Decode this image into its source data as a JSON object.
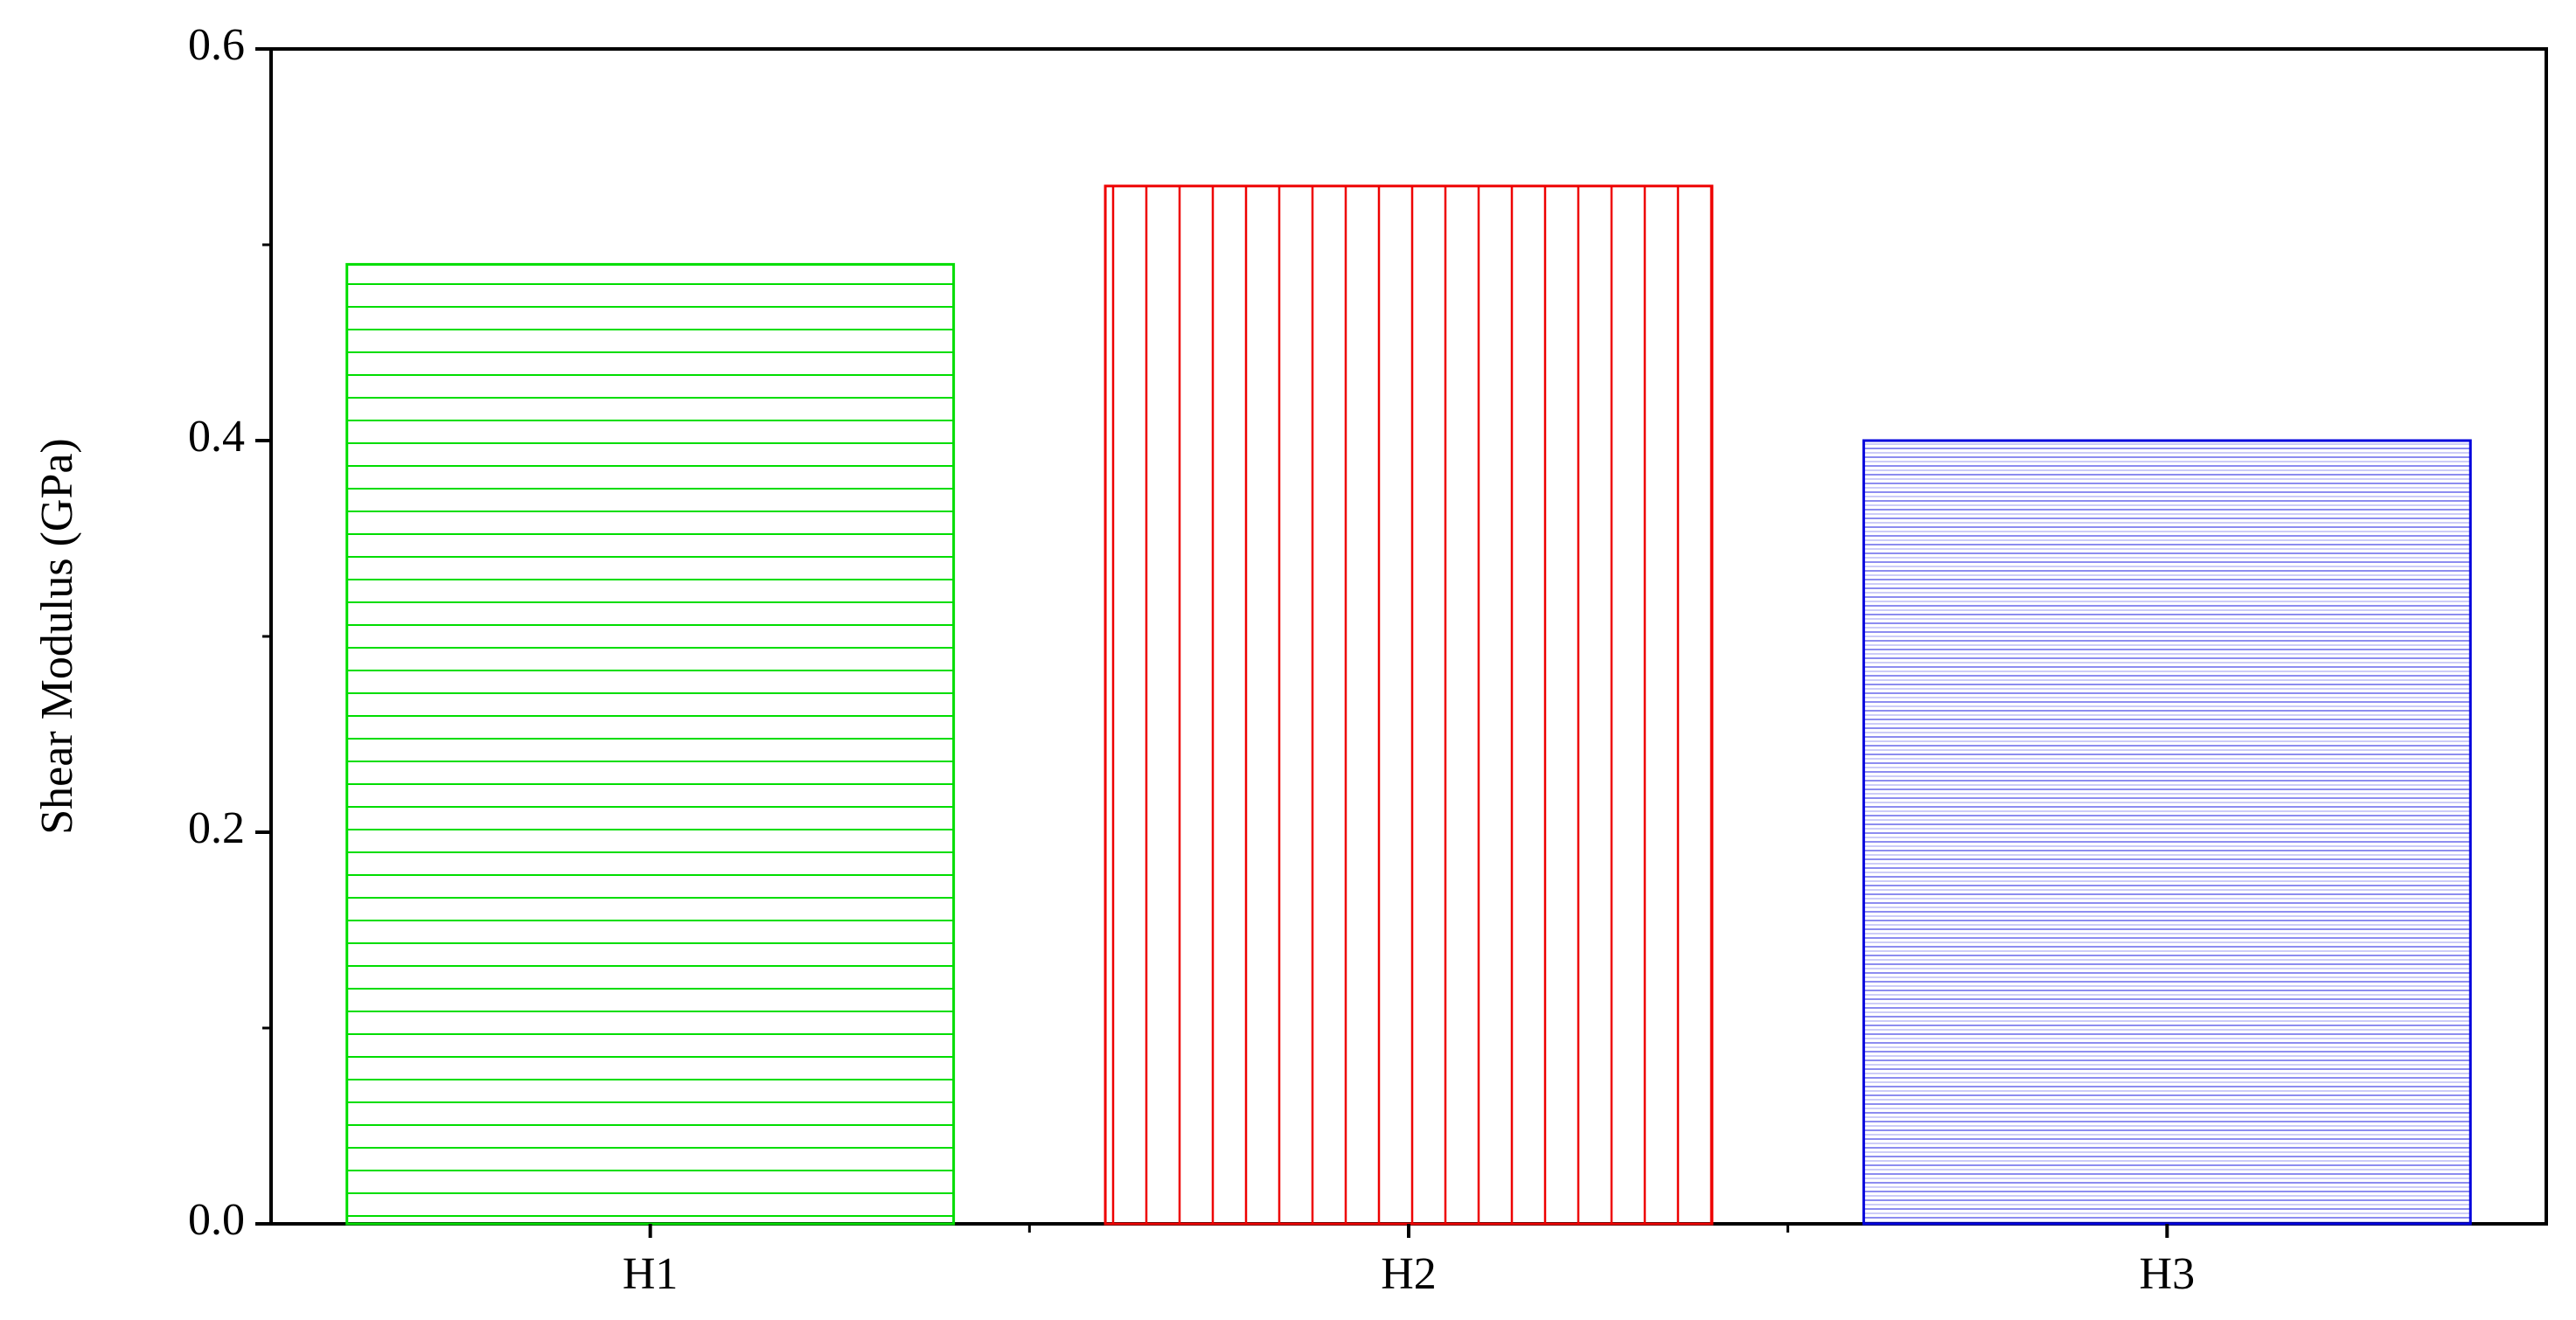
{
  "chart_data": {
    "type": "bar",
    "ylabel": "Shear Modulus (GPa)",
    "categories": [
      "H1",
      "H2",
      "H3"
    ],
    "values": [
      0.49,
      0.53,
      0.4
    ],
    "colors": [
      "#00dd00",
      "#ee0000",
      "#0000dd"
    ],
    "patterns": [
      "horizontal",
      "vertical",
      "dense"
    ],
    "ylim": [
      0,
      0.6
    ],
    "yticks": [
      {
        "value": 0,
        "label": "0.0"
      },
      0.2,
      0.4,
      0.6
    ],
    "yminorticks": [
      0.1,
      0.3,
      0.5
    ],
    "grid": false
  }
}
